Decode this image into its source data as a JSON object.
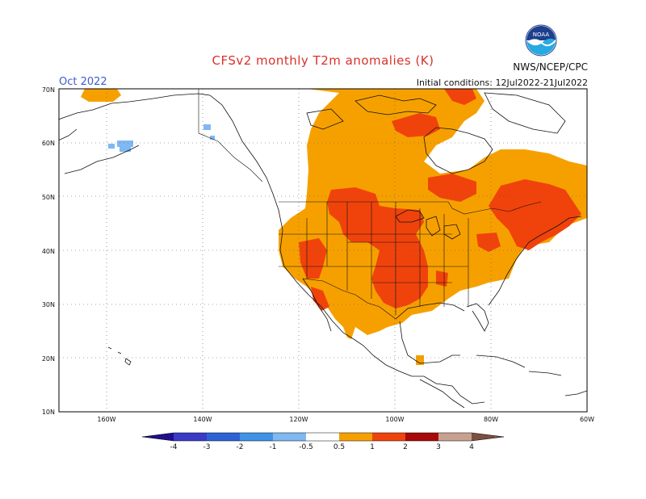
{
  "header": {
    "title": "CFSv2 monthly T2m anomalies (K)",
    "valid_month": "Oct 2022",
    "organization": "NWS/NCEP/CPC",
    "initial_conditions": "Initial conditions: 12Jul2022-21Jul2022",
    "logo_text": "NOAA"
  },
  "map": {
    "projection": "lat-lon",
    "lon_range": [
      -170,
      -60
    ],
    "lat_range": [
      10,
      70
    ],
    "lat_labels": [
      "70N",
      "60N",
      "50N",
      "40N",
      "30N",
      "20N",
      "10N"
    ],
    "lon_labels": [
      "160W",
      "140W",
      "120W",
      "100W",
      "80W",
      "60W"
    ],
    "gridlines": "dotted"
  },
  "colorbar": {
    "tick_labels": [
      "-4",
      "-3",
      "-2",
      "-1",
      "-0.5",
      "0.5",
      "1",
      "2",
      "3",
      "4"
    ],
    "colors": [
      "#1e0f8c",
      "#3a3ac8",
      "#2b63d6",
      "#3f93e6",
      "#7fb8f2",
      "#ffffff",
      "#f6a000",
      "#f0430c",
      "#a80808",
      "#c8a090",
      "#7d4f40"
    ]
  }
}
